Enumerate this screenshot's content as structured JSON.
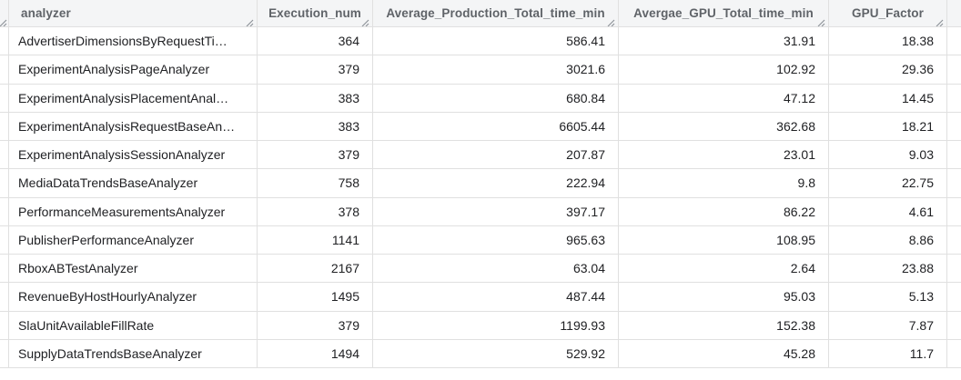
{
  "table": {
    "columns": [
      {
        "key": "analyzer",
        "label": "analyzer",
        "align": "left",
        "header_align": "left"
      },
      {
        "key": "execution_num",
        "label": "Execution_num",
        "align": "right",
        "header_align": "center"
      },
      {
        "key": "avg_production_total_time_min",
        "label": "Average_Production_Total_time_min",
        "align": "right",
        "header_align": "center"
      },
      {
        "key": "avg_gpu_total_time_min",
        "label": "Avergae_GPU_Total_time_min",
        "align": "right",
        "header_align": "center"
      },
      {
        "key": "gpu_factor",
        "label": "GPU_Factor",
        "align": "right",
        "header_align": "center"
      }
    ],
    "rows": [
      {
        "analyzer": "AdvertiserDimensionsByRequestTi…",
        "execution_num": "364",
        "avg_production_total_time_min": "586.41",
        "avg_gpu_total_time_min": "31.91",
        "gpu_factor": "18.38"
      },
      {
        "analyzer": "ExperimentAnalysisPageAnalyzer",
        "execution_num": "379",
        "avg_production_total_time_min": "3021.6",
        "avg_gpu_total_time_min": "102.92",
        "gpu_factor": "29.36"
      },
      {
        "analyzer": "ExperimentAnalysisPlacementAnal…",
        "execution_num": "383",
        "avg_production_total_time_min": "680.84",
        "avg_gpu_total_time_min": "47.12",
        "gpu_factor": "14.45"
      },
      {
        "analyzer": "ExperimentAnalysisRequestBaseAn…",
        "execution_num": "383",
        "avg_production_total_time_min": "6605.44",
        "avg_gpu_total_time_min": "362.68",
        "gpu_factor": "18.21"
      },
      {
        "analyzer": "ExperimentAnalysisSessionAnalyzer",
        "execution_num": "379",
        "avg_production_total_time_min": "207.87",
        "avg_gpu_total_time_min": "23.01",
        "gpu_factor": "9.03"
      },
      {
        "analyzer": "MediaDataTrendsBaseAnalyzer",
        "execution_num": "758",
        "avg_production_total_time_min": "222.94",
        "avg_gpu_total_time_min": "9.8",
        "gpu_factor": "22.75"
      },
      {
        "analyzer": "PerformanceMeasurementsAnalyzer",
        "execution_num": "378",
        "avg_production_total_time_min": "397.17",
        "avg_gpu_total_time_min": "86.22",
        "gpu_factor": "4.61"
      },
      {
        "analyzer": "PublisherPerformanceAnalyzer",
        "execution_num": "1141",
        "avg_production_total_time_min": "965.63",
        "avg_gpu_total_time_min": "108.95",
        "gpu_factor": "8.86"
      },
      {
        "analyzer": "RboxABTestAnalyzer",
        "execution_num": "2167",
        "avg_production_total_time_min": "63.04",
        "avg_gpu_total_time_min": "2.64",
        "gpu_factor": "23.88"
      },
      {
        "analyzer": "RevenueByHostHourlyAnalyzer",
        "execution_num": "1495",
        "avg_production_total_time_min": "487.44",
        "avg_gpu_total_time_min": "95.03",
        "gpu_factor": "5.13"
      },
      {
        "analyzer": "SlaUnitAvailableFillRate",
        "execution_num": "379",
        "avg_production_total_time_min": "1199.93",
        "avg_gpu_total_time_min": "152.38",
        "gpu_factor": "7.87"
      },
      {
        "analyzer": "SupplyDataTrendsBaseAnalyzer",
        "execution_num": "1494",
        "avg_production_total_time_min": "529.92",
        "avg_gpu_total_time_min": "45.28",
        "gpu_factor": "11.7"
      }
    ]
  },
  "colors": {
    "header_bg": "#f4f5f6",
    "border": "#e0e0e0",
    "header_text": "#5f6368",
    "body_text": "#202124",
    "resize_grip": "#8a9096"
  },
  "icons": {
    "resize_grip": "column-resize-grip-icon"
  }
}
